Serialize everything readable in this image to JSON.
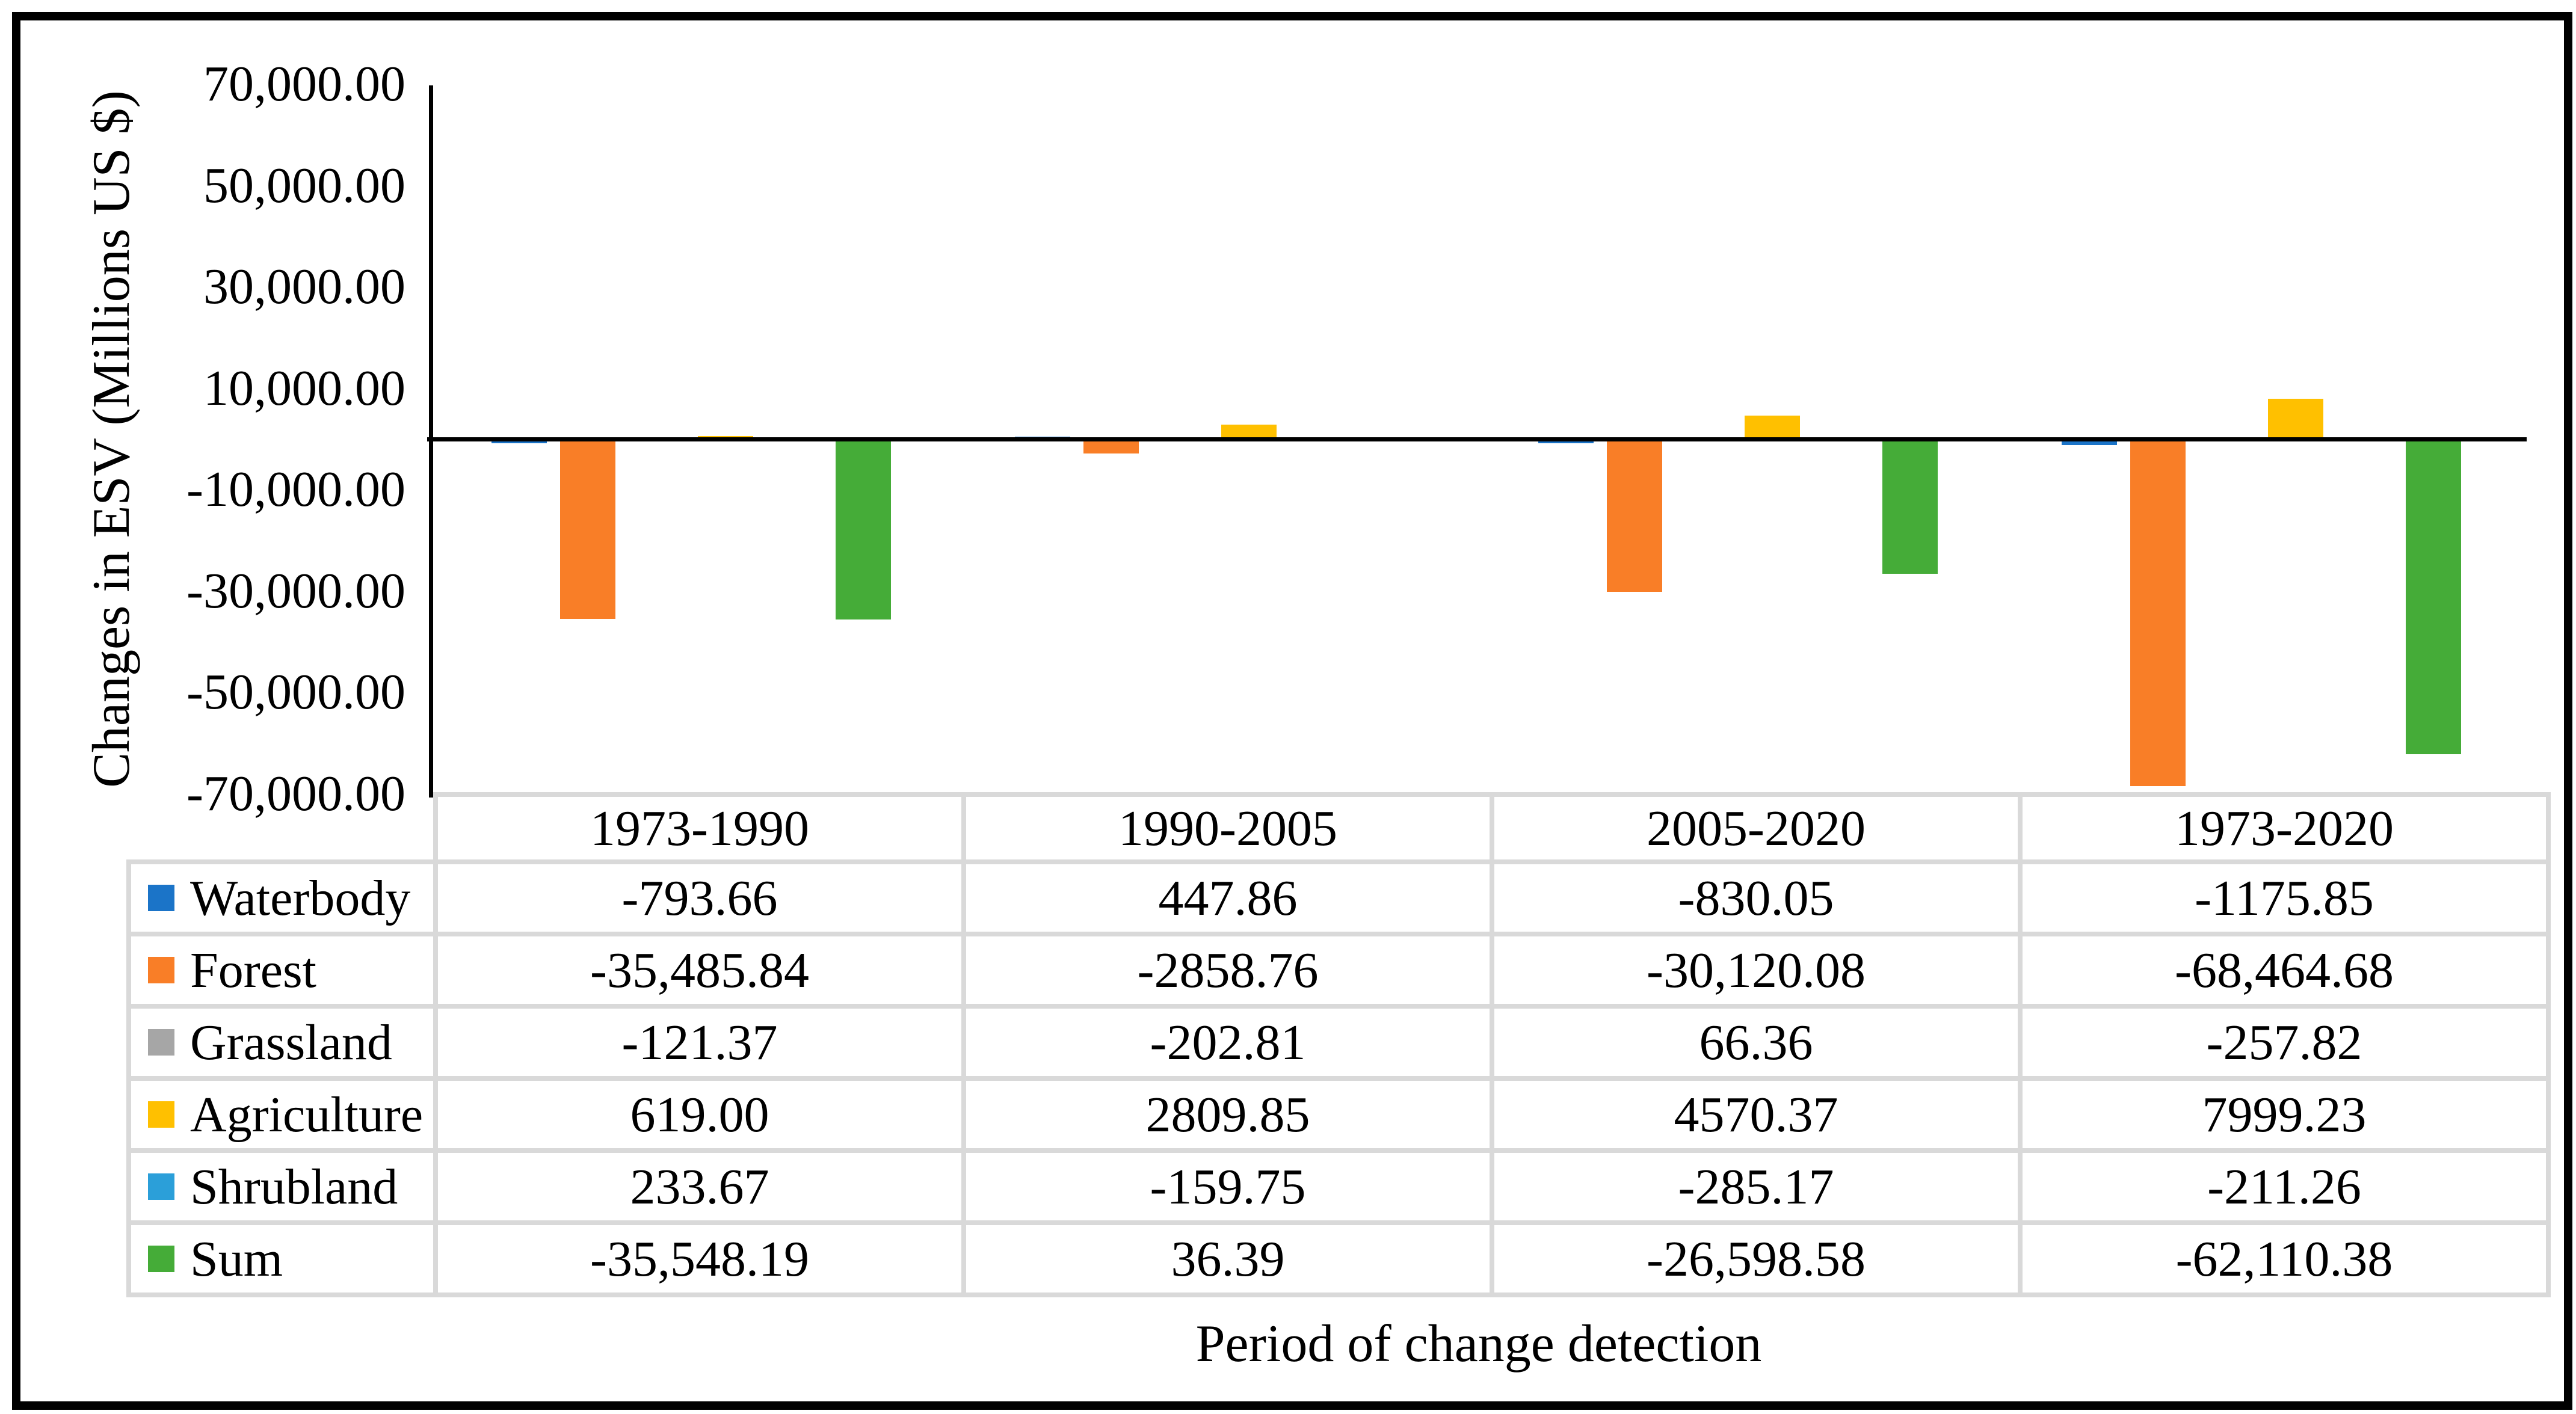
{
  "chart": {
    "y_axis_title": "Changes in ESV (Millions US $)",
    "x_axis_title": "Period of change detection",
    "y_ticks": [
      "70,000.00",
      "50,000.00",
      "30,000.00",
      "10,000.00",
      "-10,000.00",
      "-30,000.00",
      "-50,000.00",
      "-70,000.00"
    ]
  },
  "chart_data": {
    "type": "bar",
    "title": "",
    "xlabel": "Period of change detection",
    "ylabel": "Changes in ESV (Millions US $)",
    "categories": [
      "1973-1990",
      "1990-2005",
      "2005-2020",
      "1973-2020"
    ],
    "series": [
      {
        "name": "Waterbody",
        "color": "#1B74C8",
        "values": [
          -793.66,
          447.86,
          -830.05,
          -1175.85
        ]
      },
      {
        "name": "Forest",
        "color": "#F97E27",
        "values": [
          -35485.84,
          -2858.76,
          -30120.08,
          -68464.68
        ]
      },
      {
        "name": "Grassland",
        "color": "#A6A6A6",
        "values": [
          -121.37,
          -202.81,
          66.36,
          -257.82
        ]
      },
      {
        "name": "Agriculture",
        "color": "#FFC000",
        "values": [
          619.0,
          2809.85,
          4570.37,
          7999.23
        ]
      },
      {
        "name": "Shrubland",
        "color": "#2B9FD9",
        "values": [
          233.67,
          -159.75,
          -285.17,
          -211.26
        ]
      },
      {
        "name": "Sum",
        "color": "#45AC38",
        "values": [
          -35548.19,
          36.39,
          -26598.58,
          -62110.38
        ]
      }
    ],
    "ylim": [
      -70000,
      70000
    ],
    "y_tick_step": 20000,
    "grid": false,
    "legend_position": "table-left",
    "data_table_shown": true
  },
  "table": {
    "columns": [
      "1973-1990",
      "1990-2005",
      "2005-2020",
      "1973-2020"
    ],
    "rows": [
      {
        "label": "Waterbody",
        "cells": [
          "-793.66",
          "447.86",
          "-830.05",
          "-1175.85"
        ]
      },
      {
        "label": "Forest",
        "cells": [
          "-35,485.84",
          "-2858.76",
          "-30,120.08",
          "-68,464.68"
        ]
      },
      {
        "label": "Grassland",
        "cells": [
          "-121.37",
          "-202.81",
          "66.36",
          "-257.82"
        ]
      },
      {
        "label": "Agriculture",
        "cells": [
          "619.00",
          "2809.85",
          "4570.37",
          "7999.23"
        ]
      },
      {
        "label": "Shrubland",
        "cells": [
          "233.67",
          "-159.75",
          "-285.17",
          "-211.26"
        ]
      },
      {
        "label": "Sum",
        "cells": [
          "-35,548.19",
          "36.39",
          "-26,598.58",
          "-62,110.38"
        ]
      }
    ]
  },
  "colors": {
    "axis_line": "#000000",
    "table_border": "#D9D9D9",
    "background": "#FFFFFF",
    "frame_border": "#000000"
  }
}
